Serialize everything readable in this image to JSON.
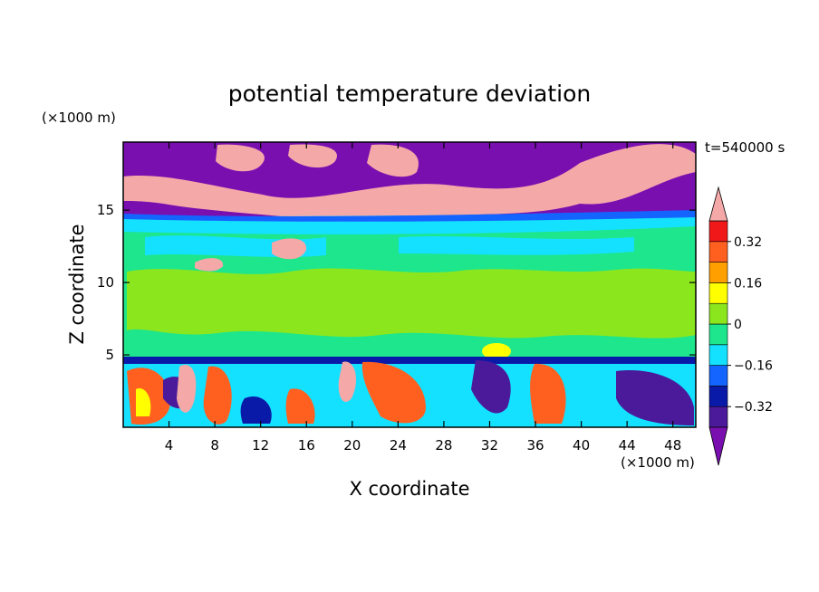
{
  "chart_data": {
    "type": "heatmap",
    "title": "potential temperature deviation",
    "xlabel": "X coordinate",
    "ylabel": "Z coordinate",
    "x_unit": "(×1000 m)",
    "y_unit": "(×1000 m)",
    "time_label": "t=540000 s",
    "xlim": [
      0,
      50
    ],
    "ylim": [
      0,
      19.7
    ],
    "x_ticks": [
      4,
      8,
      12,
      16,
      20,
      24,
      28,
      32,
      36,
      40,
      44,
      48
    ],
    "y_ticks": [
      5,
      10,
      15
    ],
    "colorbar": {
      "levels": [
        -0.4,
        -0.32,
        -0.24,
        -0.16,
        -0.08,
        0,
        0.08,
        0.16,
        0.24,
        0.32,
        0.4
      ],
      "labels": [
        "-0.32",
        "-0.16",
        "0",
        "0.16",
        "0.32"
      ],
      "label_values": [
        -0.32,
        -0.16,
        0,
        0.16,
        0.32
      ],
      "colors": [
        "#7a0fb0",
        "#4a1a9a",
        "#0a1aa8",
        "#1464ff",
        "#14e0ff",
        "#1ee68c",
        "#8ce61e",
        "#ffff00",
        "#ffa000",
        "#ff6020",
        "#f01818",
        "#f5a8a8"
      ],
      "extend": "both"
    },
    "layers": [
      {
        "z_range": [
          14.6,
          19.7
        ],
        "description_value": "mix of >0.4 and <-0.4"
      },
      {
        "z_range": [
          5,
          14.6
        ],
        "description_value": "between -0.08 and 0.08"
      },
      {
        "z_range": [
          0,
          5
        ],
        "description_value": "full range alternating"
      }
    ]
  },
  "colors": {
    "extreme_positive": "#f5a8a8",
    "extreme_negative": "#7a0fb0",
    "stable_green": "#1ee68c",
    "light_green": "#8ce61e",
    "cyan": "#14e0ff"
  }
}
